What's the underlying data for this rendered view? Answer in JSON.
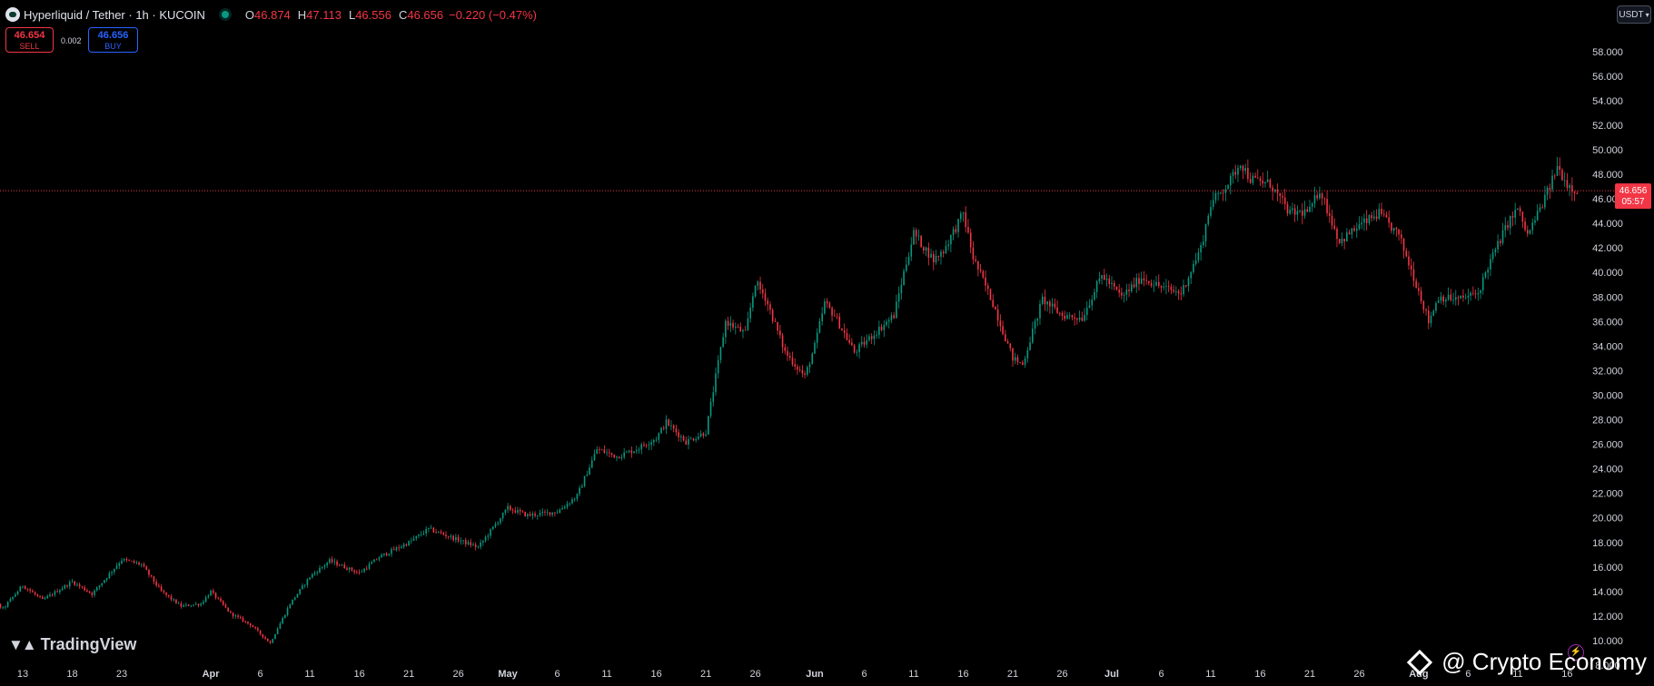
{
  "header": {
    "symbol": "Hyperliquid / Tether · 1h · KUCOIN",
    "o_label": "O",
    "o_value": "46.874",
    "h_label": "H",
    "h_value": "47.113",
    "l_label": "L",
    "l_value": "46.556",
    "c_label": "C",
    "c_value": "46.656",
    "change": "−0.220 (−0.47%)"
  },
  "trade": {
    "sell_price": "46.654",
    "sell_label": "SELL",
    "spread": "0.002",
    "buy_price": "46.656",
    "buy_label": "BUY"
  },
  "currency": "USDT",
  "branding": {
    "tradingview": "TradingView",
    "watermark": "@ Crypto Economy",
    "flash_icon": "lightning-icon"
  },
  "colors": {
    "background": "#000000",
    "up": "#089981",
    "down": "#f23645",
    "text": "#d1d4dc",
    "last_price_line": "#f23645"
  },
  "chart_data": {
    "type": "candlestick",
    "timeframe": "1h",
    "last_price": "46.656",
    "countdown": "05:57",
    "ylim": [
      8,
      59
    ],
    "y_ticks": [
      "8.000",
      "10.000",
      "12.000",
      "14.000",
      "16.000",
      "18.000",
      "20.000",
      "22.000",
      "24.000",
      "26.000",
      "28.000",
      "30.000",
      "32.000",
      "34.000",
      "36.000",
      "38.000",
      "40.000",
      "42.000",
      "44.000",
      "46.000",
      "48.000",
      "50.000",
      "52.000",
      "54.000",
      "56.000",
      "58.000"
    ],
    "x_ticks": [
      {
        "date": "2025-03-13",
        "label": "13"
      },
      {
        "date": "2025-03-18",
        "label": "18"
      },
      {
        "date": "2025-03-23",
        "label": "23"
      },
      {
        "date": "2025-04-01",
        "label": "Apr"
      },
      {
        "date": "2025-04-06",
        "label": "6"
      },
      {
        "date": "2025-04-11",
        "label": "11"
      },
      {
        "date": "2025-04-16",
        "label": "16"
      },
      {
        "date": "2025-04-21",
        "label": "21"
      },
      {
        "date": "2025-04-26",
        "label": "26"
      },
      {
        "date": "2025-05-01",
        "label": "May"
      },
      {
        "date": "2025-05-06",
        "label": "6"
      },
      {
        "date": "2025-05-11",
        "label": "11"
      },
      {
        "date": "2025-05-16",
        "label": "16"
      },
      {
        "date": "2025-05-21",
        "label": "21"
      },
      {
        "date": "2025-05-26",
        "label": "26"
      },
      {
        "date": "2025-06-01",
        "label": "Jun"
      },
      {
        "date": "2025-06-06",
        "label": "6"
      },
      {
        "date": "2025-06-11",
        "label": "11"
      },
      {
        "date": "2025-06-16",
        "label": "16"
      },
      {
        "date": "2025-06-21",
        "label": "21"
      },
      {
        "date": "2025-06-26",
        "label": "26"
      },
      {
        "date": "2025-07-01",
        "label": "Jul"
      },
      {
        "date": "2025-07-06",
        "label": "6"
      },
      {
        "date": "2025-07-11",
        "label": "11"
      },
      {
        "date": "2025-07-16",
        "label": "16"
      },
      {
        "date": "2025-07-21",
        "label": "21"
      },
      {
        "date": "2025-07-26",
        "label": "26"
      },
      {
        "date": "2025-08-01",
        "label": "Aug"
      },
      {
        "date": "2025-08-06",
        "label": "6"
      },
      {
        "date": "2025-08-11",
        "label": "11"
      },
      {
        "date": "2025-08-16",
        "label": "16"
      }
    ],
    "price_path": [
      [
        "2025-03-08",
        14.3
      ],
      [
        "2025-03-11",
        12.6
      ],
      [
        "2025-03-13",
        14.5
      ],
      [
        "2025-03-15",
        13.3
      ],
      [
        "2025-03-18",
        14.8
      ],
      [
        "2025-03-20",
        13.8
      ],
      [
        "2025-03-23",
        16.6
      ],
      [
        "2025-03-25",
        16.2
      ],
      [
        "2025-03-27",
        14.0
      ],
      [
        "2025-03-29",
        12.8
      ],
      [
        "2025-03-31",
        13.0
      ],
      [
        "2025-04-01",
        14.0
      ],
      [
        "2025-04-03",
        12.2
      ],
      [
        "2025-04-05",
        11.3
      ],
      [
        "2025-04-07",
        9.8
      ],
      [
        "2025-04-09",
        13.0
      ],
      [
        "2025-04-11",
        15.2
      ],
      [
        "2025-04-13",
        16.5
      ],
      [
        "2025-04-16",
        15.5
      ],
      [
        "2025-04-18",
        16.8
      ],
      [
        "2025-04-21",
        18.0
      ],
      [
        "2025-04-23",
        19.1
      ],
      [
        "2025-04-26",
        18.2
      ],
      [
        "2025-04-28",
        17.6
      ],
      [
        "2025-05-01",
        20.8
      ],
      [
        "2025-05-03",
        20.2
      ],
      [
        "2025-05-06",
        20.5
      ],
      [
        "2025-05-08",
        21.8
      ],
      [
        "2025-05-10",
        25.6
      ],
      [
        "2025-05-12",
        25.0
      ],
      [
        "2025-05-14",
        25.6
      ],
      [
        "2025-05-16",
        26.5
      ],
      [
        "2025-05-17",
        27.8
      ],
      [
        "2025-05-19",
        26.2
      ],
      [
        "2025-05-21",
        27.0
      ],
      [
        "2025-05-23",
        36.0
      ],
      [
        "2025-05-25",
        35.0
      ],
      [
        "2025-05-26",
        39.2
      ],
      [
        "2025-05-27",
        38.0
      ],
      [
        "2025-05-29",
        33.5
      ],
      [
        "2025-05-31",
        31.5
      ],
      [
        "2025-06-01",
        34.0
      ],
      [
        "2025-06-02",
        37.5
      ],
      [
        "2025-06-03",
        36.5
      ],
      [
        "2025-06-05",
        33.5
      ],
      [
        "2025-06-07",
        35.0
      ],
      [
        "2025-06-09",
        36.5
      ],
      [
        "2025-06-10",
        40.0
      ],
      [
        "2025-06-11",
        43.2
      ],
      [
        "2025-06-13",
        41.0
      ],
      [
        "2025-06-14",
        41.8
      ],
      [
        "2025-06-16",
        44.8
      ],
      [
        "2025-06-17",
        41.2
      ],
      [
        "2025-06-19",
        37.5
      ],
      [
        "2025-06-21",
        33.0
      ],
      [
        "2025-06-22",
        32.5
      ],
      [
        "2025-06-23",
        35.2
      ],
      [
        "2025-06-24",
        37.8
      ],
      [
        "2025-06-26",
        36.5
      ],
      [
        "2025-06-28",
        36.3
      ],
      [
        "2025-06-30",
        39.8
      ],
      [
        "2025-07-02",
        38.0
      ],
      [
        "2025-07-04",
        39.6
      ],
      [
        "2025-07-06",
        38.8
      ],
      [
        "2025-07-08",
        38.3
      ],
      [
        "2025-07-10",
        42.0
      ],
      [
        "2025-07-11",
        45.6
      ],
      [
        "2025-07-13",
        47.5
      ],
      [
        "2025-07-14",
        49.0
      ],
      [
        "2025-07-15",
        47.6
      ],
      [
        "2025-07-17",
        47.2
      ],
      [
        "2025-07-19",
        44.8
      ],
      [
        "2025-07-21",
        45.0
      ],
      [
        "2025-07-22",
        46.8
      ],
      [
        "2025-07-24",
        42.5
      ],
      [
        "2025-07-26",
        43.8
      ],
      [
        "2025-07-28",
        44.8
      ],
      [
        "2025-07-30",
        43.0
      ],
      [
        "2025-08-01",
        38.5
      ],
      [
        "2025-08-02",
        36.0
      ],
      [
        "2025-08-03",
        38.0
      ],
      [
        "2025-08-05",
        37.8
      ],
      [
        "2025-08-07",
        38.3
      ],
      [
        "2025-08-08",
        40.5
      ],
      [
        "2025-08-10",
        44.0
      ],
      [
        "2025-08-11",
        45.2
      ],
      [
        "2025-08-12",
        43.0
      ],
      [
        "2025-08-14",
        46.5
      ],
      [
        "2025-08-15",
        48.6
      ],
      [
        "2025-08-16",
        47.2
      ],
      [
        "2025-08-17",
        46.656
      ]
    ]
  }
}
